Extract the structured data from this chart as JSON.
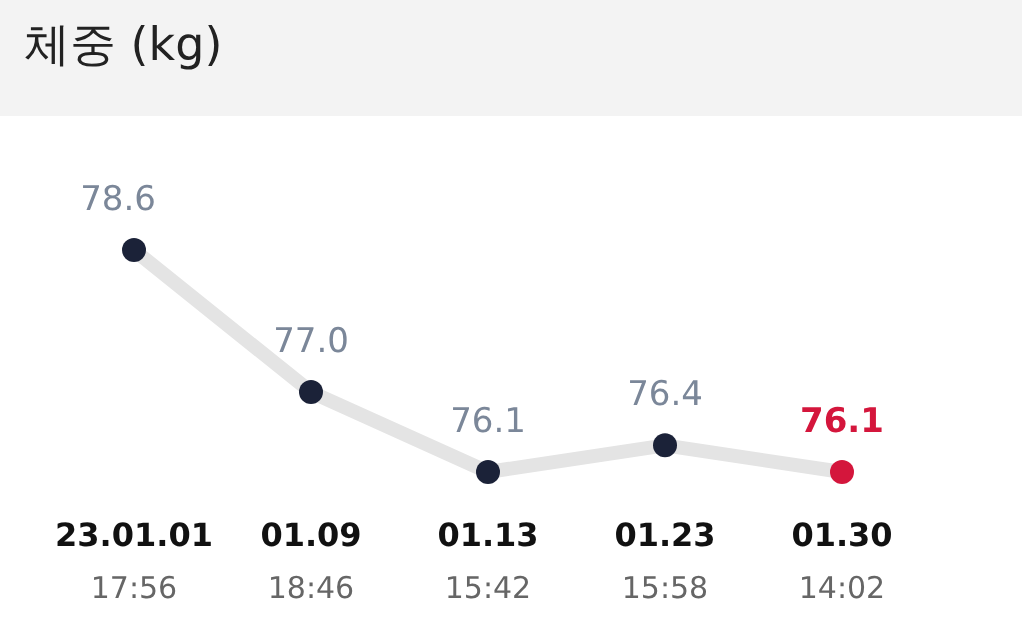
{
  "chart_data": {
    "type": "line",
    "title": "체중 (kg)",
    "categories": [
      "23.01.01\n17:56",
      "01.09\n18:46",
      "01.13\n15:42",
      "01.23\n15:58",
      "01.30\n14:02"
    ],
    "series": [
      {
        "color": "#e4e4e4",
        "values": [
          78.6,
          77.0,
          76.1,
          76.4,
          76.1
        ],
        "value_labels": [
          "78.6",
          "77.0",
          "76.1",
          "76.4",
          "76.1"
        ],
        "colors": [
          "#1b2238",
          "#1b2238",
          "#1b2238",
          "#1b2238",
          "#d4163c"
        ]
      }
    ],
    "marker": "circle"
  }
}
